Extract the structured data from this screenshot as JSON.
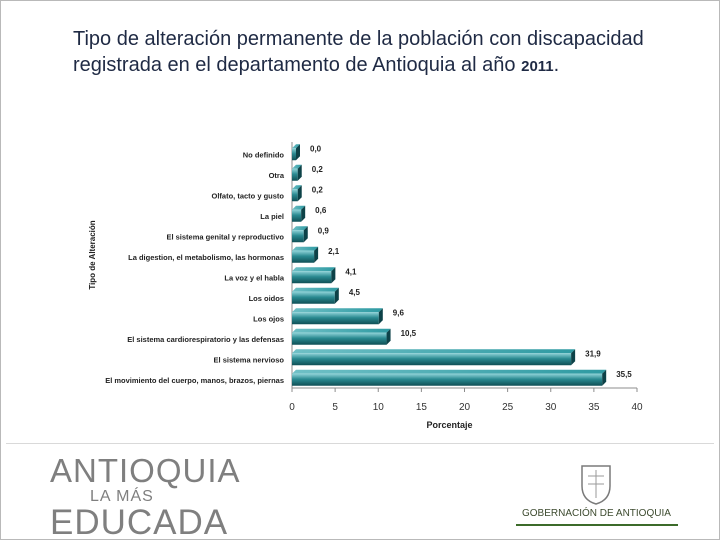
{
  "title": {
    "text": "Tipo de alteración permanente de la población con discapacidad registrada en el departamento de Antioquia al año",
    "year": "2011",
    "end": "."
  },
  "chart_data": {
    "type": "bar",
    "orientation": "horizontal",
    "categories": [
      "No definido",
      "Otra",
      "Olfato, tacto y gusto",
      "La piel",
      "El sistema genital y reproductivo",
      "La digestion, el metabolismo, las hormonas",
      "La voz y el habla",
      "Los oidos",
      "Los ojos",
      "El sistema cardiorespiratorio y las defensas",
      "El sistema nervioso",
      "El movimiento del cuerpo, manos, brazos, piernas"
    ],
    "values": [
      0.0,
      0.2,
      0.2,
      0.6,
      0.9,
      2.1,
      4.1,
      4.5,
      9.6,
      10.5,
      31.9,
      35.5
    ],
    "value_labels": [
      "0,0",
      "0,2",
      "0,2",
      "0,6",
      "0,9",
      "2,1",
      "4,1",
      "4,5",
      "9,6",
      "10,5",
      "31,9",
      "35,5"
    ],
    "xlabel": "Porcentaje",
    "ylabel": "Tipo de Alteración",
    "xlim": [
      0,
      40
    ],
    "xticks": [
      0,
      5,
      10,
      15,
      20,
      25,
      30,
      35,
      40
    ],
    "grid": false,
    "legend": "none",
    "bar_color": "#2a8a91"
  },
  "footer": {
    "logo_line1": "ANTIOQUIA",
    "logo_line2": "LA MÁS",
    "logo_line3": "EDUCADA",
    "gov_label": "GOBERNACIÓN DE ANTIOQUIA"
  }
}
